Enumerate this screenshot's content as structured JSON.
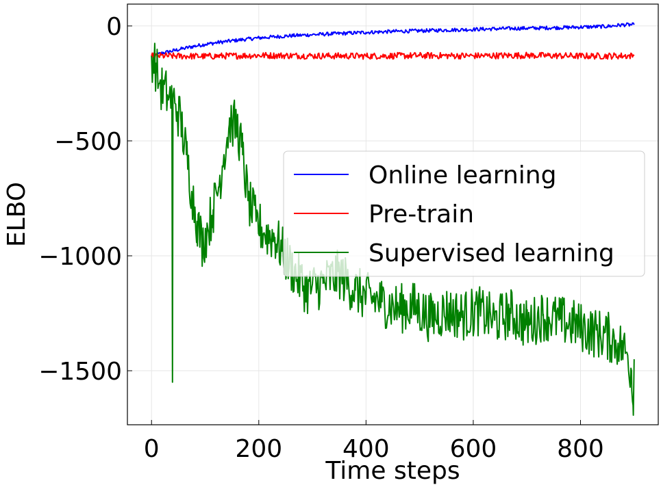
{
  "chart_data": {
    "type": "line",
    "title": "",
    "xlabel": "Time steps",
    "ylabel": "ELBO",
    "xlim": [
      -45,
      945
    ],
    "ylim": [
      -1735,
      95
    ],
    "xticks": [
      0,
      200,
      400,
      600,
      800
    ],
    "xtick_labels": [
      "0",
      "200",
      "400",
      "600",
      "800"
    ],
    "yticks": [
      0,
      -500,
      -1000,
      -1500
    ],
    "ytick_labels": [
      "0",
      "−500",
      "−1000",
      "−1500"
    ],
    "grid": true,
    "legend_position": "center-right",
    "series": [
      {
        "name": "Online learning",
        "color": "#0000ff",
        "x": [
          0,
          10,
          20,
          40,
          60,
          80,
          100,
          130,
          160,
          200,
          250,
          300,
          350,
          400,
          450,
          500,
          550,
          600,
          650,
          700,
          750,
          800,
          850,
          880,
          900
        ],
        "y": [
          -130,
          -125,
          -118,
          -108,
          -98,
          -88,
          -80,
          -70,
          -62,
          -52,
          -44,
          -38,
          -33,
          -28,
          -24,
          -21,
          -18,
          -15,
          -12,
          -10,
          -8,
          -5,
          -2,
          5,
          5
        ],
        "noise": 8
      },
      {
        "name": "Pre-train",
        "color": "#ff0000",
        "x": [
          0,
          100,
          200,
          300,
          400,
          500,
          600,
          700,
          800,
          900
        ],
        "y": [
          -130,
          -132,
          -128,
          -130,
          -131,
          -129,
          -130,
          -128,
          -131,
          -130
        ],
        "noise": 14
      },
      {
        "name": "Supervised learning",
        "color": "#008000",
        "x": [
          0,
          5,
          10,
          15,
          20,
          30,
          38,
          39,
          40,
          45,
          55,
          65,
          75,
          85,
          95,
          105,
          115,
          125,
          135,
          145,
          150,
          160,
          170,
          180,
          195,
          210,
          230,
          260,
          290,
          320,
          350,
          380,
          400,
          430,
          460,
          490,
          520,
          550,
          580,
          610,
          640,
          670,
          700,
          730,
          760,
          790,
          820,
          850,
          870,
          885,
          895,
          898,
          900
        ],
        "y": [
          -130,
          -150,
          -200,
          -250,
          -280,
          -300,
          -320,
          -1550,
          -320,
          -340,
          -420,
          -560,
          -720,
          -850,
          -950,
          -880,
          -800,
          -700,
          -560,
          -430,
          -420,
          -440,
          -560,
          -760,
          -850,
          -900,
          -920,
          -1050,
          -1150,
          -1120,
          -1080,
          -1150,
          -1180,
          -1200,
          -1230,
          -1220,
          -1270,
          -1240,
          -1260,
          -1240,
          -1280,
          -1250,
          -1300,
          -1260,
          -1280,
          -1300,
          -1330,
          -1350,
          -1380,
          -1420,
          -1500,
          -1650,
          -1450
        ],
        "noise": 110
      }
    ]
  }
}
